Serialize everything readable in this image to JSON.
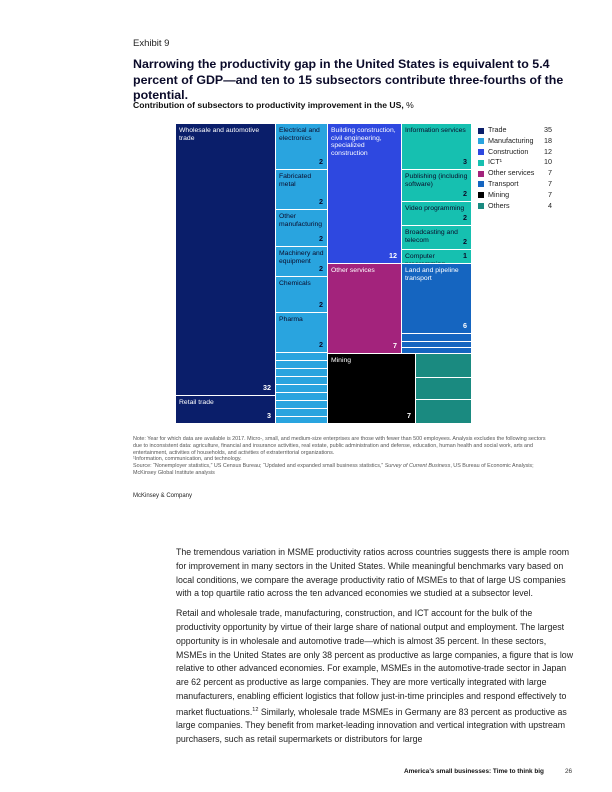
{
  "exhibit_label": "Exhibit 9",
  "title": "Narrowing the productivity gap in the United States is equivalent to 5.4 percent of GDP—and ten to 15 subsectors contribute three-fourths of the potential.",
  "chart_data": {
    "type": "treemap",
    "title": "Contribution of subsectors to productivity improvement in the US,",
    "unit": "%",
    "sectors": [
      {
        "name": "Trade",
        "value": 35,
        "color": "#0a1e6a",
        "subsectors": [
          {
            "name": "Wholesale and automotive trade",
            "value": 32
          },
          {
            "name": "Retail trade",
            "value": 3
          }
        ]
      },
      {
        "name": "Manufacturing",
        "value": 18,
        "color": "#29a4df",
        "subsectors": [
          {
            "name": "Electrical and electronics",
            "value": 2
          },
          {
            "name": "Fabricated metal",
            "value": 2
          },
          {
            "name": "Other manufacturing",
            "value": 2
          },
          {
            "name": "Machinery and equipment",
            "value": 2
          },
          {
            "name": "Chemicals",
            "value": 2
          },
          {
            "name": "Pharma",
            "value": 2
          }
        ]
      },
      {
        "name": "Construction",
        "value": 12,
        "color": "#2e48e0",
        "subsectors": [
          {
            "name": "Building construction, civil engineering, specialized construction",
            "value": 12
          }
        ]
      },
      {
        "name": "ICT",
        "value": 10,
        "color": "#16c0b0",
        "subsectors": [
          {
            "name": "Information services",
            "value": 3
          },
          {
            "name": "Publishing (including software)",
            "value": 2
          },
          {
            "name": "Video programming",
            "value": 2
          },
          {
            "name": "Broadcasting and telecom",
            "value": 2
          },
          {
            "name": "Computer programming",
            "value": 1
          }
        ]
      },
      {
        "name": "Other services",
        "value": 7,
        "color": "#a3237c",
        "subsectors": [
          {
            "name": "Other services",
            "value": 7
          }
        ]
      },
      {
        "name": "Transport",
        "value": 7,
        "color": "#1565c0",
        "subsectors": [
          {
            "name": "Land and pipeline transport",
            "value": 6
          }
        ]
      },
      {
        "name": "Mining",
        "value": 7,
        "color": "#000000",
        "subsectors": [
          {
            "name": "Mining",
            "value": 7
          }
        ]
      },
      {
        "name": "Others",
        "value": 4,
        "color": "#1a8a80",
        "subsectors": []
      }
    ],
    "legend": [
      {
        "name": "Trade",
        "value": "35",
        "color": "#0a1e6a"
      },
      {
        "name": "Manufacturing",
        "value": "18",
        "color": "#29a4df"
      },
      {
        "name": "Construction",
        "value": "12",
        "color": "#2e48e0"
      },
      {
        "name": "ICT¹",
        "value": "10",
        "color": "#16c0b0"
      },
      {
        "name": "Other services",
        "value": "7",
        "color": "#a3237c"
      },
      {
        "name": "Transport",
        "value": "7",
        "color": "#1565c0"
      },
      {
        "name": "Mining",
        "value": "7",
        "color": "#000000"
      },
      {
        "name": "Others",
        "value": "4",
        "color": "#1a8a80"
      }
    ]
  },
  "notes": {
    "note": "Note: Year for which data are available is 2017. Micro-, small, and medium-size enterprises are those with fewer than 500 employees. Analysis excludes the following sectors due to inconsistent data: agriculture, financial and insurance activities, real estate, public administration and defense, education, human health and social work, arts and entertainment, activities of households, and activities of extraterritorial organizations.",
    "footnote": "¹Information, communication, and technology.",
    "source_prefix": "Source: “Nonemployer statistics,” US Census Bureau; “Updated and expanded small business statistics,”",
    "source_italic": "Survey of Current Business",
    "source_suffix": ", US Bureau of Economic Analysis; McKinsey Global Institute analysis"
  },
  "publisher": "McKinsey & Company",
  "body": {
    "p1": "The tremendous variation in MSME productivity ratios across countries suggests there is ample room for improvement in many sectors in the United States. While meaningful benchmarks vary based on local conditions, we compare the average productivity ratio of MSMEs to that of large US companies with a top quartile ratio across the ten advanced economies we studied at a subsector level.",
    "p2a": "Retail and wholesale trade, manufacturing, construction, and ICT account for the bulk of the productivity opportunity by virtue of their large share of national output and employment. The largest opportunity is in wholesale and automotive trade—which is almost 35 percent. In these sectors, MSMEs in the United States are only 38 percent as productive as large companies, a figure that is low relative to other advanced economies. For example, MSMEs in the automotive-trade sector in Japan are 62 percent as productive as large companies. They are more vertically integrated with large manufacturers, enabling efficient logistics that follow just-in-time principles and respond effectively to market fluctuations.",
    "p2_sup": "12",
    "p2b": " Similarly, wholesale trade MSMEs in Germany are 83 percent as productive as large companies. They benefit from market-leading innovation and vertical integration with upstream purchasers, such as retail supermarkets or distributors for large"
  },
  "footer": {
    "title": "America’s small businesses: Time to think big",
    "page": "26"
  }
}
